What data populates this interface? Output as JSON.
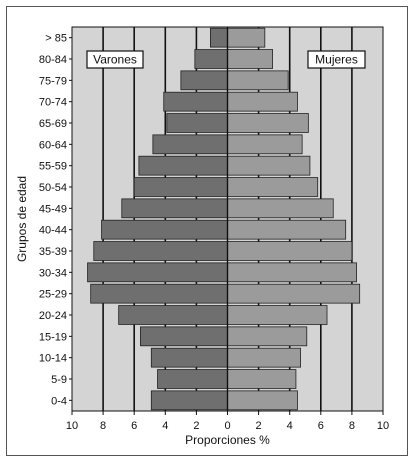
{
  "chart_data": {
    "type": "bar",
    "orientation": "horizontal",
    "subtype": "population-pyramid",
    "categories": [
      "0-4",
      "5-9",
      "10-14",
      "15-19",
      "20-24",
      "25-29",
      "30-34",
      "35-39",
      "40-44",
      "45-49",
      "50-54",
      "55-59",
      "60-64",
      "65-69",
      "70-74",
      "75-79",
      "80-84",
      "> 85"
    ],
    "series": [
      {
        "name": "Varones",
        "side": "left",
        "values": [
          4.9,
          4.5,
          4.9,
          5.6,
          7.0,
          8.8,
          9.0,
          8.6,
          8.1,
          6.8,
          6.0,
          5.7,
          4.8,
          3.9,
          4.1,
          3.0,
          2.1,
          1.1
        ],
        "color": "#6f6f6f"
      },
      {
        "name": "Mujeres",
        "side": "right",
        "values": [
          4.5,
          4.4,
          4.7,
          5.1,
          6.4,
          8.5,
          8.3,
          8.0,
          7.6,
          6.8,
          5.8,
          5.3,
          4.8,
          5.2,
          4.5,
          3.9,
          2.9,
          2.4
        ],
        "color": "#9b9b9b"
      }
    ],
    "xlabel": "Proporciones %",
    "ylabel": "Grupos de edad",
    "xlim": [
      -10,
      10
    ],
    "xticks": [
      -10,
      -8,
      -6,
      -4,
      -2,
      0,
      2,
      4,
      6,
      8,
      10
    ],
    "xtick_labels": [
      "10",
      "8",
      "6",
      "4",
      "2",
      "0",
      "2",
      "4",
      "6",
      "8",
      "10"
    ],
    "grid": "vertical",
    "legend": "top-left and top-right",
    "colors": {
      "background": "#d4d4d4",
      "gridline": "#111111",
      "bar_border": "#222222"
    }
  }
}
